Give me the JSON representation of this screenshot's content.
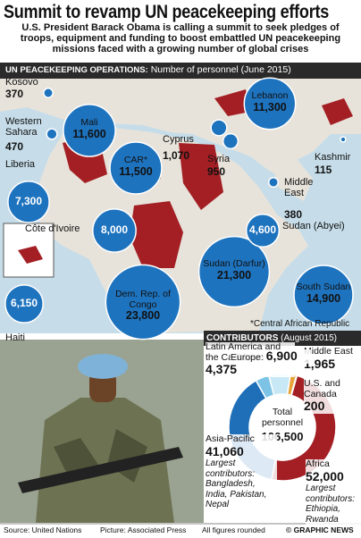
{
  "header": {
    "title": "Summit to revamp UN peacekeeping efforts",
    "subtitle": "U.S. President Barack Obama is calling a summit to seek pledges of troops, equipment and funding to boost embattled UN peacekeeping missions faced with a growing number of global crises"
  },
  "map": {
    "heading": "UN Peacekeeping Operations:",
    "subheading": "Number of personnel (June 2015)",
    "color": "#1e73be",
    "missions": [
      {
        "name": "Kosovo",
        "value": 370
      },
      {
        "name": "Western Sahara",
        "value": 470
      },
      {
        "name": "Liberia",
        "value": 7300,
        "label": "7,300"
      },
      {
        "name": "Mali",
        "value": 11600,
        "label": "11,600"
      },
      {
        "name": "CAR*",
        "value": 11500,
        "label": "11,500"
      },
      {
        "name": "Côte d'Ivoire",
        "value": 8000,
        "label": "8,000"
      },
      {
        "name": "Dem. Rep. of Congo",
        "value": 23800,
        "label": "23,800"
      },
      {
        "name": "Sudan (Darfur)",
        "value": 21300,
        "label": "21,300"
      },
      {
        "name": "South Sudan",
        "value": 14900,
        "label": "14,900"
      },
      {
        "name": "Sudan (Abyei)",
        "value": 4600,
        "label": "4,600"
      },
      {
        "name": "Middle East",
        "value": 380
      },
      {
        "name": "Cyprus",
        "value": 1070,
        "label": "1,070"
      },
      {
        "name": "Syria",
        "value": 950
      },
      {
        "name": "Lebanon",
        "value": 11300,
        "label": "11,300"
      },
      {
        "name": "Kashmir",
        "value": 115
      },
      {
        "name": "Haiti",
        "value": 6150,
        "label": "6,150"
      }
    ],
    "footnote": "*Central African Republic"
  },
  "contributors": {
    "heading": "Contributors",
    "subheading": "(August 2015)",
    "total_name": "Total personnel",
    "total": 106500,
    "total_label": "106,500",
    "segments": [
      {
        "name": "Middle East",
        "value": 1965,
        "label": "1,965",
        "color": "#e8a33a"
      },
      {
        "name": "U.S. and Canada",
        "value": 200,
        "color": "#6b4a2a"
      },
      {
        "name": "Africa",
        "value": 52000,
        "label": "52,000",
        "color": "#a31f24",
        "note": "Largest contributors: Ethiopia, Rwanda"
      },
      {
        "name": "Asia-Pacific",
        "value": 41060,
        "label": "41,060",
        "color": "#1e6fb8",
        "note": "Largest contributors: Bangladesh, India, Pakistan, Nepal"
      },
      {
        "name": "Latin America and the Caribbean",
        "value": 4375,
        "label": "4,375",
        "color": "#7cc3e6"
      },
      {
        "name": "Europe:",
        "value": 6900,
        "label": "6,900",
        "color": "#c9e8f5"
      }
    ]
  },
  "footer": {
    "source": "Source: United Nations",
    "picture": "Picture: Associated Press",
    "note": "All figures rounded",
    "credit": "© GRAPHIC NEWS"
  }
}
